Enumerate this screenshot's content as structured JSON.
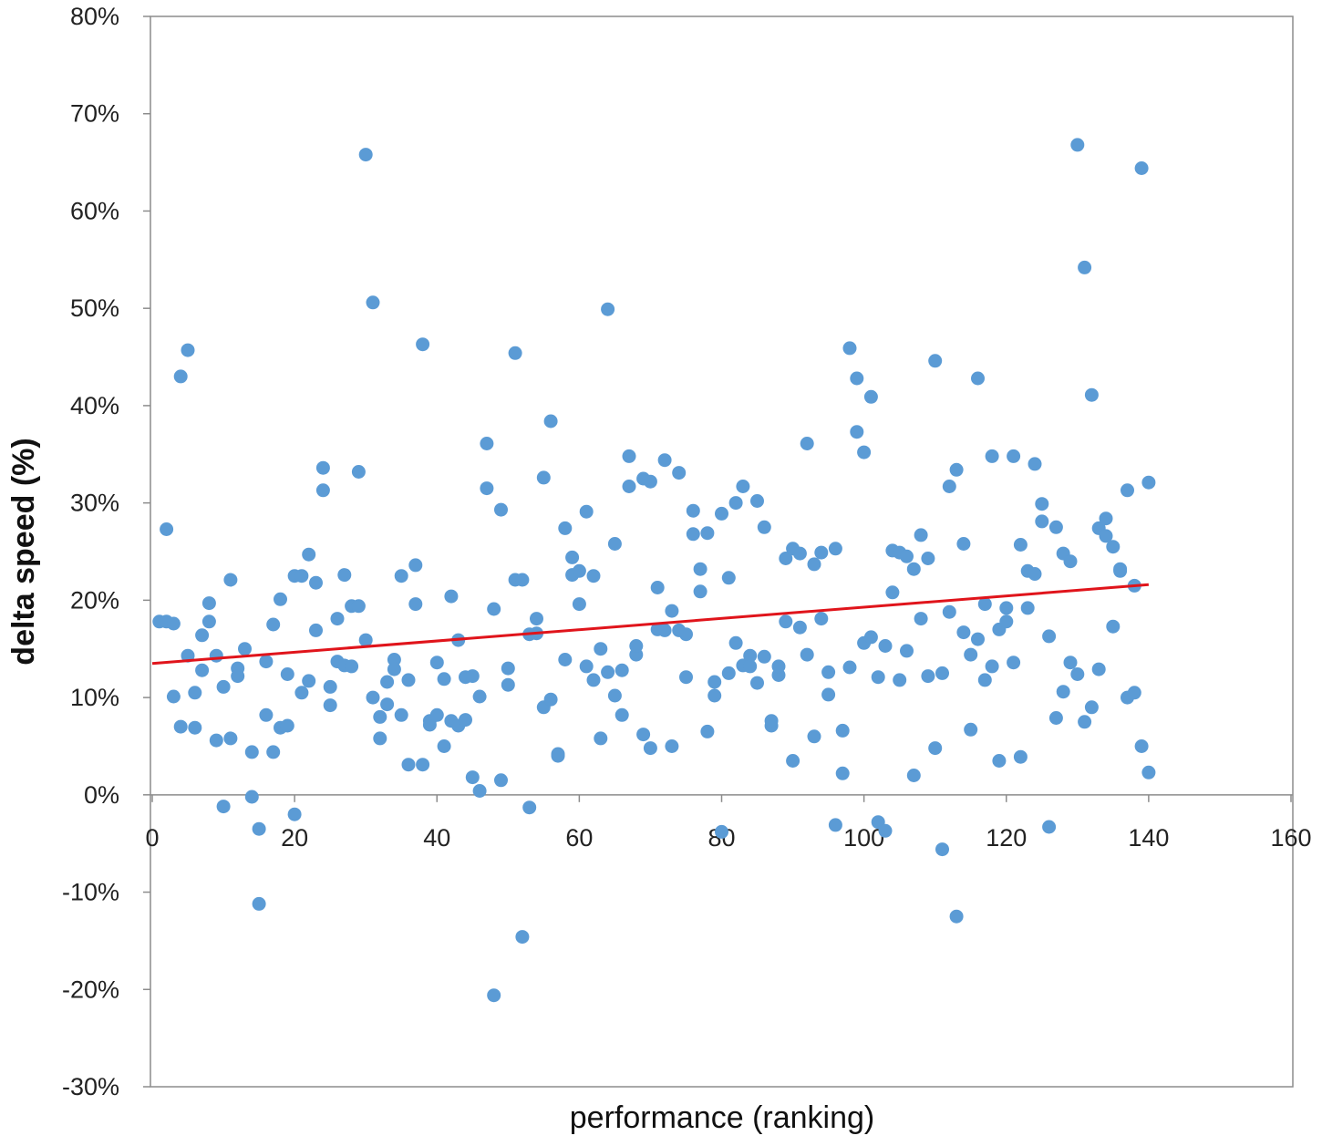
{
  "chart_data": {
    "type": "scatter",
    "title": "",
    "xlabel": "performance  (ranking)",
    "ylabel": "delta speed  (%)",
    "xlim": [
      0,
      160
    ],
    "ylim": [
      -30,
      80
    ],
    "x_ticks": [
      0,
      20,
      40,
      60,
      80,
      100,
      120,
      140,
      160
    ],
    "x_tick_labels": [
      "0",
      "20",
      "40",
      "60",
      "80",
      "100",
      "120",
      "140",
      "160"
    ],
    "y_ticks": [
      -30,
      -20,
      -10,
      0,
      10,
      20,
      30,
      40,
      50,
      60,
      70,
      80
    ],
    "y_tick_labels": [
      "-30%",
      "-20%",
      "-10%",
      "0%",
      "10%",
      "20%",
      "30%",
      "40%",
      "50%",
      "60%",
      "70%",
      "80%"
    ],
    "grid": false,
    "legend": "none",
    "colors": {
      "points": "#5b9bd5",
      "trendline": "#e0141b",
      "axes": "#8c8c8c"
    },
    "series": [
      {
        "type": "scatter",
        "x": [
          1,
          2,
          2,
          3,
          3,
          4,
          4,
          5,
          5,
          6,
          6,
          7,
          7,
          8,
          8,
          9,
          9,
          10,
          10,
          11,
          11,
          12,
          12,
          13,
          14,
          14,
          15,
          15,
          16,
          16,
          17,
          17,
          18,
          18,
          19,
          19,
          20,
          20,
          21,
          21,
          22,
          22,
          23,
          23,
          24,
          24,
          25,
          25,
          26,
          26,
          27,
          27,
          28,
          28,
          29,
          29,
          30,
          30,
          31,
          31,
          32,
          32,
          33,
          33,
          34,
          34,
          35,
          35,
          36,
          36,
          37,
          37,
          38,
          38,
          39,
          39,
          40,
          40,
          41,
          41,
          42,
          42,
          43,
          43,
          44,
          44,
          45,
          45,
          46,
          46,
          47,
          47,
          48,
          48,
          49,
          49,
          50,
          50,
          51,
          51,
          52,
          52,
          53,
          53,
          54,
          54,
          55,
          55,
          56,
          56,
          57,
          57,
          58,
          58,
          59,
          59,
          60,
          60,
          61,
          61,
          62,
          62,
          63,
          63,
          64,
          64,
          65,
          65,
          66,
          66,
          67,
          67,
          68,
          68,
          69,
          69,
          70,
          70,
          71,
          71,
          72,
          72,
          73,
          73,
          74,
          74,
          75,
          75,
          76,
          76,
          77,
          77,
          78,
          78,
          79,
          79,
          80,
          80,
          81,
          81,
          82,
          82,
          83,
          83,
          84,
          84,
          85,
          85,
          86,
          86,
          87,
          87,
          88,
          88,
          89,
          89,
          90,
          90,
          91,
          91,
          92,
          92,
          93,
          93,
          94,
          94,
          95,
          95,
          96,
          96,
          97,
          97,
          98,
          98,
          99,
          99,
          100,
          100,
          101,
          101,
          102,
          102,
          103,
          103,
          104,
          104,
          105,
          105,
          106,
          106,
          107,
          107,
          108,
          108,
          109,
          109,
          110,
          110,
          111,
          111,
          112,
          112,
          113,
          113,
          114,
          114,
          115,
          115,
          116,
          116,
          117,
          117,
          118,
          118,
          119,
          119,
          120,
          120,
          121,
          121,
          122,
          122,
          123,
          123,
          124,
          124,
          125,
          125,
          126,
          126,
          127,
          127,
          128,
          128,
          129,
          129,
          130,
          130,
          131,
          131,
          132,
          132,
          133,
          133,
          134,
          134,
          135,
          135,
          136,
          136,
          137,
          137,
          138,
          138,
          139,
          139,
          140,
          140
        ],
        "y": [
          17.8,
          17.8,
          27.3,
          17.6,
          10.1,
          43.0,
          7.0,
          45.7,
          14.3,
          10.5,
          6.9,
          16.4,
          12.8,
          19.7,
          17.8,
          14.3,
          5.6,
          11.1,
          -1.2,
          22.1,
          5.8,
          13.0,
          12.2,
          15.0,
          4.4,
          -0.2,
          -3.5,
          -11.2,
          13.7,
          8.2,
          17.5,
          4.4,
          20.1,
          6.9,
          12.4,
          7.1,
          22.5,
          -2.0,
          22.5,
          10.5,
          24.7,
          11.7,
          21.8,
          16.9,
          31.3,
          33.6,
          11.1,
          9.2,
          18.1,
          13.7,
          13.3,
          22.6,
          13.2,
          19.4,
          19.4,
          33.2,
          65.8,
          15.9,
          10.0,
          50.6,
          5.8,
          8.0,
          11.6,
          9.3,
          13.9,
          12.9,
          22.5,
          8.2,
          11.8,
          3.1,
          19.6,
          23.6,
          3.1,
          46.3,
          7.6,
          7.2,
          8.2,
          13.6,
          11.9,
          5.0,
          20.4,
          7.6,
          7.1,
          15.9,
          7.7,
          12.1,
          12.2,
          1.8,
          10.1,
          0.4,
          31.5,
          36.1,
          19.1,
          -20.6,
          1.5,
          29.3,
          11.3,
          13.0,
          45.4,
          22.1,
          22.1,
          -14.6,
          -1.3,
          16.5,
          16.6,
          18.1,
          9.0,
          32.6,
          9.8,
          38.4,
          4.0,
          4.2,
          13.9,
          27.4,
          24.4,
          22.6,
          23.0,
          19.6,
          29.1,
          13.2,
          22.5,
          11.8,
          5.8,
          15.0,
          12.6,
          49.9,
          10.2,
          25.8,
          12.8,
          8.2,
          34.8,
          31.7,
          14.4,
          15.3,
          32.5,
          6.2,
          4.8,
          32.2,
          17.0,
          21.3,
          16.9,
          34.4,
          5.0,
          18.9,
          16.9,
          33.1,
          12.1,
          16.5,
          26.8,
          29.2,
          23.2,
          20.9,
          6.5,
          26.9,
          10.2,
          11.6,
          -3.8,
          28.9,
          12.5,
          22.3,
          15.6,
          30.0,
          13.3,
          31.7,
          14.3,
          13.2,
          11.5,
          30.2,
          14.2,
          27.5,
          7.1,
          7.6,
          12.3,
          13.2,
          17.8,
          24.3,
          25.3,
          3.5,
          17.2,
          24.8,
          14.4,
          36.1,
          6.0,
          23.7,
          24.9,
          18.1,
          10.3,
          12.6,
          25.3,
          -3.1,
          2.2,
          6.6,
          45.9,
          13.1,
          42.8,
          37.3,
          15.6,
          35.2,
          40.9,
          16.2,
          12.1,
          -2.8,
          15.3,
          -3.7,
          25.1,
          20.8,
          11.8,
          24.9,
          14.8,
          24.5,
          2.0,
          23.2,
          18.1,
          26.7,
          24.3,
          12.2,
          44.6,
          4.8,
          12.5,
          -5.6,
          18.8,
          31.7,
          -12.5,
          33.4,
          16.7,
          25.8,
          14.4,
          6.7,
          16.0,
          42.8,
          11.8,
          19.6,
          13.2,
          34.8,
          3.5,
          17.0,
          17.8,
          19.2,
          34.8,
          13.6,
          25.7,
          3.9,
          19.2,
          23.0,
          22.7,
          34.0,
          28.1,
          29.9,
          16.3,
          -3.3,
          7.9,
          27.5,
          10.6,
          24.8,
          24.0,
          13.6,
          12.4,
          66.8,
          54.2,
          7.5,
          41.1,
          9.0,
          12.9,
          27.4,
          28.4,
          26.6,
          25.5,
          17.3,
          23.0,
          23.2,
          10.0,
          31.3,
          21.5,
          10.5,
          64.4,
          5.0,
          2.3,
          32.1
        ]
      }
    ],
    "trendline": {
      "type": "linear",
      "x": [
        0,
        140
      ],
      "y": [
        13.5,
        21.6
      ]
    }
  }
}
